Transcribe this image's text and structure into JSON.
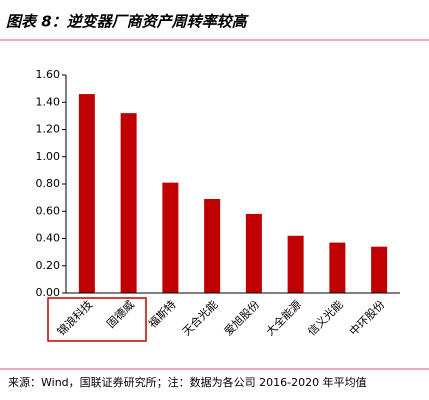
{
  "chart_data": {
    "type": "bar",
    "title": "图表 8：逆变器厂商资产周转率较高",
    "categories": [
      "锦浪科技",
      "固德威",
      "福斯特",
      "天合光能",
      "爱旭股份",
      "大全能源",
      "信义光能",
      "中环股份"
    ],
    "values": [
      1.46,
      1.32,
      0.81,
      0.69,
      0.58,
      0.42,
      0.37,
      0.34
    ],
    "color": "#c00000",
    "ylim": [
      0,
      1.6
    ],
    "yticks": [
      {
        "value": 0,
        "label": "0.00"
      },
      {
        "value": 0.2,
        "label": "0.20"
      },
      {
        "value": 0.4,
        "label": "0.40"
      },
      {
        "value": 0.6,
        "label": "0.60"
      },
      {
        "value": 0.8,
        "label": "0.80"
      },
      {
        "value": 1.0,
        "label": "1.00"
      },
      {
        "value": 1.2,
        "label": "1.20"
      },
      {
        "value": 1.4,
        "label": "1.40"
      },
      {
        "value": 1.6,
        "label": "1.60"
      }
    ],
    "grid": false,
    "source": "来源：Wind，国联证券研究所；注：数据为各公司 2016-2020 年平均值"
  }
}
